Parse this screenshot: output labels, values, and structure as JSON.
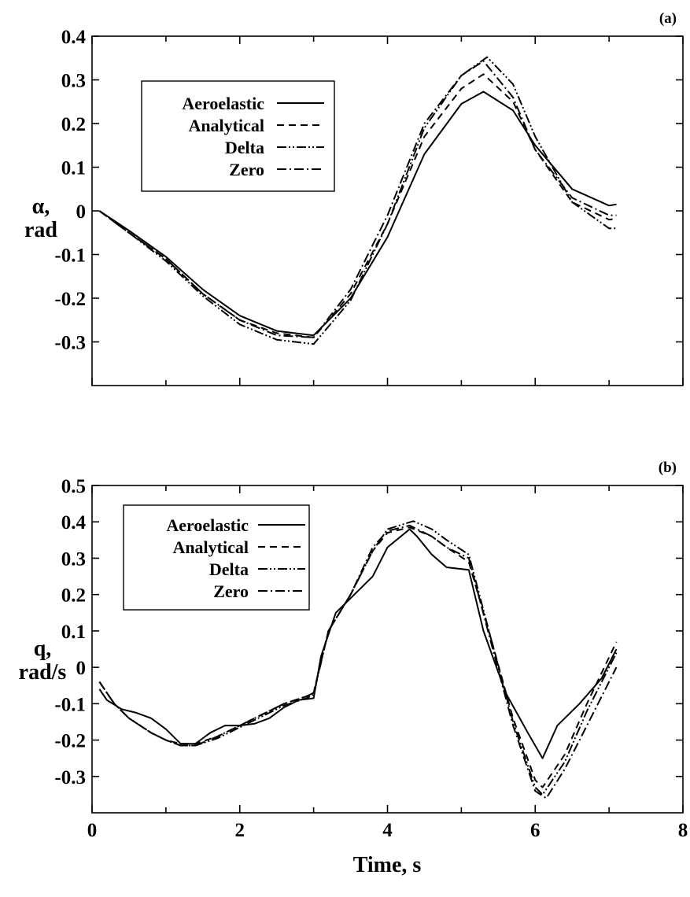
{
  "chart_data": [
    {
      "type": "line",
      "panel_label": "(a)",
      "ylabel": "α,",
      "ylabel_line2": "rad",
      "xlim": [
        0,
        8
      ],
      "ylim": [
        -0.4,
        0.4
      ],
      "xticks": [
        0,
        2,
        4,
        6,
        8
      ],
      "yticks": [
        0.4,
        0.3,
        0.2,
        0.1,
        0,
        -0.1,
        -0.2,
        -0.3
      ],
      "ytick_labels": [
        "0.4",
        "0.3",
        "0.2",
        "0.1",
        "0",
        "-0.1",
        "-0.2",
        "-0.3"
      ],
      "grid": false,
      "legend_position": "upper-left",
      "series": [
        {
          "name": "Aeroelastic",
          "dash": "solid",
          "x": [
            0.1,
            0.5,
            1.0,
            1.5,
            2.0,
            2.5,
            3.0,
            3.5,
            4.0,
            4.5,
            5.0,
            5.3,
            5.7,
            6.0,
            6.5,
            7.0,
            7.1
          ],
          "y": [
            0,
            -0.045,
            -0.105,
            -0.18,
            -0.24,
            -0.275,
            -0.285,
            -0.2,
            -0.06,
            0.13,
            0.245,
            0.273,
            0.23,
            0.15,
            0.05,
            0.012,
            0.015
          ]
        },
        {
          "name": "Analytical",
          "dash": "dash",
          "x": [
            0.1,
            0.5,
            1.0,
            1.5,
            2.0,
            2.5,
            3.0,
            3.5,
            4.0,
            4.5,
            5.0,
            5.3,
            5.7,
            6.0,
            6.5,
            7.0,
            7.1
          ],
          "y": [
            0,
            -0.05,
            -0.11,
            -0.19,
            -0.25,
            -0.28,
            -0.29,
            -0.19,
            -0.03,
            0.17,
            0.28,
            0.313,
            0.25,
            0.14,
            0.02,
            -0.02,
            -0.018
          ]
        },
        {
          "name": "Delta",
          "dash": "dash-dot-dot",
          "x": [
            0.1,
            0.5,
            1.0,
            1.5,
            2.0,
            2.5,
            3.0,
            3.5,
            4.0,
            4.5,
            5.0,
            5.35,
            5.7,
            6.0,
            6.5,
            7.0,
            7.1
          ],
          "y": [
            0,
            -0.05,
            -0.115,
            -0.195,
            -0.26,
            -0.295,
            -0.305,
            -0.205,
            -0.03,
            0.19,
            0.31,
            0.352,
            0.29,
            0.17,
            0.02,
            -0.04,
            -0.04
          ]
        },
        {
          "name": "Zero",
          "dash": "dash-dot",
          "x": [
            0.1,
            0.5,
            1.0,
            1.5,
            2.0,
            2.5,
            3.0,
            3.5,
            4.0,
            4.5,
            5.0,
            5.3,
            5.7,
            6.0,
            6.5,
            7.0,
            7.1
          ],
          "y": [
            0,
            -0.05,
            -0.11,
            -0.19,
            -0.25,
            -0.285,
            -0.29,
            -0.18,
            -0.01,
            0.2,
            0.31,
            0.343,
            0.26,
            0.14,
            0.03,
            -0.01,
            -0.01
          ]
        }
      ]
    },
    {
      "type": "line",
      "panel_label": "(b)",
      "ylabel": "q,",
      "ylabel_line2": "rad/s",
      "xlabel": "Time, s",
      "xlim": [
        0,
        8
      ],
      "ylim": [
        -0.4,
        0.5
      ],
      "xticks": [
        0,
        2,
        4,
        6,
        8
      ],
      "xtick_labels": [
        "0",
        "2",
        "4",
        "6",
        "8"
      ],
      "yticks": [
        0.5,
        0.4,
        0.3,
        0.2,
        0.1,
        0,
        -0.1,
        -0.2,
        -0.3
      ],
      "ytick_labels": [
        "0.5",
        "0.4",
        "0.3",
        "0.2",
        "0.1",
        "0",
        "-0.1",
        "-0.2",
        "-0.3"
      ],
      "grid": false,
      "legend_position": "upper-left",
      "series": [
        {
          "name": "Aeroelastic",
          "dash": "solid",
          "x": [
            0.1,
            0.2,
            0.4,
            0.6,
            0.8,
            1.0,
            1.2,
            1.4,
            1.6,
            1.8,
            2.0,
            2.2,
            2.4,
            2.6,
            2.8,
            3.0,
            3.1,
            3.3,
            3.5,
            3.8,
            4.0,
            4.3,
            4.4,
            4.6,
            4.8,
            5.1,
            5.3,
            5.6,
            5.9,
            6.1,
            6.3,
            6.6,
            6.9,
            7.1
          ],
          "y": [
            -0.06,
            -0.09,
            -0.115,
            -0.125,
            -0.14,
            -0.17,
            -0.21,
            -0.21,
            -0.18,
            -0.16,
            -0.16,
            -0.155,
            -0.14,
            -0.11,
            -0.09,
            -0.085,
            0.03,
            0.15,
            0.19,
            0.25,
            0.33,
            0.38,
            0.36,
            0.31,
            0.275,
            0.268,
            0.1,
            -0.07,
            -0.18,
            -0.25,
            -0.16,
            -0.1,
            -0.03,
            0.05
          ]
        },
        {
          "name": "Analytical",
          "dash": "dash",
          "x": [
            0.1,
            0.3,
            0.5,
            0.8,
            1.0,
            1.2,
            1.4,
            1.7,
            2.0,
            2.3,
            2.6,
            2.9,
            3.0,
            3.2,
            3.5,
            3.8,
            4.0,
            4.3,
            4.6,
            4.8,
            5.1,
            5.4,
            5.7,
            6.0,
            6.1,
            6.4,
            6.7,
            7.1
          ],
          "y": [
            -0.04,
            -0.1,
            -0.14,
            -0.18,
            -0.2,
            -0.21,
            -0.21,
            -0.19,
            -0.16,
            -0.13,
            -0.1,
            -0.08,
            -0.07,
            0.1,
            0.2,
            0.32,
            0.37,
            0.385,
            0.36,
            0.33,
            0.29,
            0.08,
            -0.14,
            -0.31,
            -0.33,
            -0.24,
            -0.1,
            0.07
          ]
        },
        {
          "name": "Delta",
          "dash": "dash-dot-dot",
          "x": [
            0.1,
            0.3,
            0.5,
            0.8,
            1.0,
            1.2,
            1.4,
            1.7,
            2.0,
            2.3,
            2.6,
            2.9,
            3.0,
            3.2,
            3.5,
            3.8,
            4.0,
            4.35,
            4.6,
            4.8,
            5.1,
            5.4,
            5.7,
            6.0,
            6.1,
            6.4,
            6.7,
            7.1
          ],
          "y": [
            -0.04,
            -0.1,
            -0.14,
            -0.18,
            -0.2,
            -0.215,
            -0.215,
            -0.195,
            -0.165,
            -0.135,
            -0.105,
            -0.085,
            -0.075,
            0.1,
            0.2,
            0.32,
            0.38,
            0.402,
            0.38,
            0.35,
            0.31,
            0.08,
            -0.15,
            -0.33,
            -0.35,
            -0.26,
            -0.12,
            0.04
          ]
        },
        {
          "name": "Zero",
          "dash": "dash-dot",
          "x": [
            0.1,
            0.3,
            0.5,
            0.8,
            1.0,
            1.2,
            1.4,
            1.7,
            2.0,
            2.3,
            2.6,
            2.9,
            3.0,
            3.2,
            3.5,
            3.8,
            4.0,
            4.3,
            4.6,
            4.8,
            5.1,
            5.4,
            5.7,
            6.0,
            6.15,
            6.4,
            6.7,
            7.1
          ],
          "y": [
            -0.04,
            -0.1,
            -0.14,
            -0.18,
            -0.2,
            -0.215,
            -0.215,
            -0.19,
            -0.16,
            -0.13,
            -0.1,
            -0.08,
            -0.07,
            0.1,
            0.2,
            0.33,
            0.375,
            0.39,
            0.36,
            0.33,
            0.3,
            0.07,
            -0.16,
            -0.34,
            -0.36,
            -0.28,
            -0.16,
            0
          ]
        }
      ]
    }
  ]
}
